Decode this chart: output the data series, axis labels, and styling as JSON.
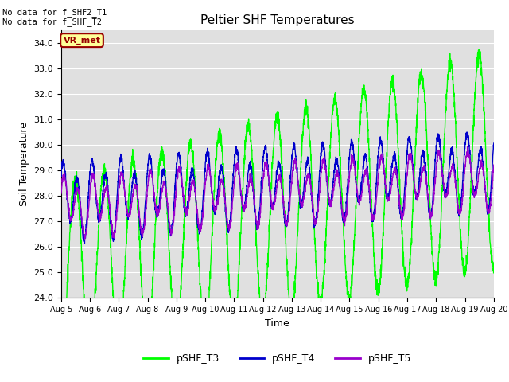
{
  "title": "Peltier SHF Temperatures",
  "xlabel": "Time",
  "ylabel": "Soil Temperature",
  "ylim": [
    24.0,
    34.5
  ],
  "yticks": [
    24.0,
    25.0,
    26.0,
    27.0,
    28.0,
    29.0,
    30.0,
    31.0,
    32.0,
    33.0,
    34.0
  ],
  "bg_color": "#e0e0e0",
  "fig_color": "#ffffff",
  "annotation_text": "No data for f_SHF2_T1\nNo data for f_SHF_T2",
  "legend_box_text": "VR_met",
  "legend_box_facecolor": "#ffff99",
  "legend_box_edgecolor": "#990000",
  "legend_box_textcolor": "#990000",
  "grid_color": "#ffffff",
  "line_T3_color": "#00ff00",
  "line_T4_color": "#0000cc",
  "line_T5_color": "#9900cc",
  "line_width": 1.0,
  "n_points": 3000,
  "x_start": 5.0,
  "x_end": 20.0,
  "xtick_labels": [
    "Aug 5",
    "Aug 6",
    "Aug 7",
    "Aug 8",
    "Aug 9",
    "Aug 10",
    "Aug 11",
    "Aug 12",
    "Aug 13",
    "Aug 14",
    "Aug 15",
    "Aug 16",
    "Aug 17",
    "Aug 18",
    "Aug 19",
    "Aug 20"
  ],
  "xtick_positions": [
    5,
    6,
    7,
    8,
    9,
    10,
    11,
    12,
    13,
    14,
    15,
    16,
    17,
    18,
    19,
    20
  ]
}
